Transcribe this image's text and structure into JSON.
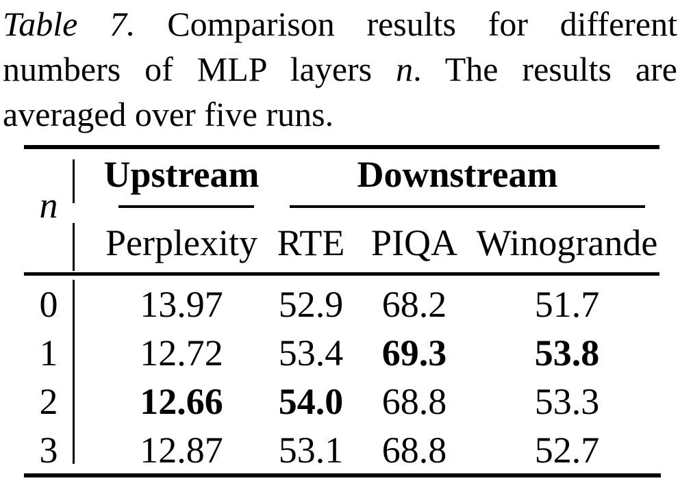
{
  "page": {
    "background_color": "#ffffff",
    "text_color": "#000000"
  },
  "caption": {
    "label": "Table 7.",
    "line1_rest": "Comparison results for different",
    "line2_pre": "numbers of MLP layers",
    "line2_var": "n",
    "line2_rest": ". The results are",
    "line3": "averaged over five runs.",
    "full_text": "Table 7. Comparison results for different numbers of MLP layers n. The results are averaged over five runs."
  },
  "table": {
    "row_header_label": "n",
    "groups": [
      {
        "label": "Upstream",
        "columns": [
          "Perplexity"
        ]
      },
      {
        "label": "Downstream",
        "columns": [
          "RTE",
          "PIQA",
          "Winogrande"
        ]
      }
    ],
    "columns": {
      "perplexity": "Perplexity",
      "rte": "RTE",
      "piqa": "PIQA",
      "winogrande": "Winogrande"
    },
    "rows": [
      {
        "n": "0",
        "perplexity": "13.97",
        "rte": "52.9",
        "piqa": "68.2",
        "winogrande": "51.7",
        "bold": []
      },
      {
        "n": "1",
        "perplexity": "12.72",
        "rte": "53.4",
        "piqa": "69.3",
        "winogrande": "53.8",
        "bold": [
          "piqa",
          "winogrande"
        ]
      },
      {
        "n": "2",
        "perplexity": "12.66",
        "rte": "54.0",
        "piqa": "68.8",
        "winogrande": "53.3",
        "bold": [
          "perplexity",
          "rte"
        ]
      },
      {
        "n": "3",
        "perplexity": "12.87",
        "rte": "53.1",
        "piqa": "68.8",
        "winogrande": "52.7",
        "bold": []
      }
    ]
  }
}
